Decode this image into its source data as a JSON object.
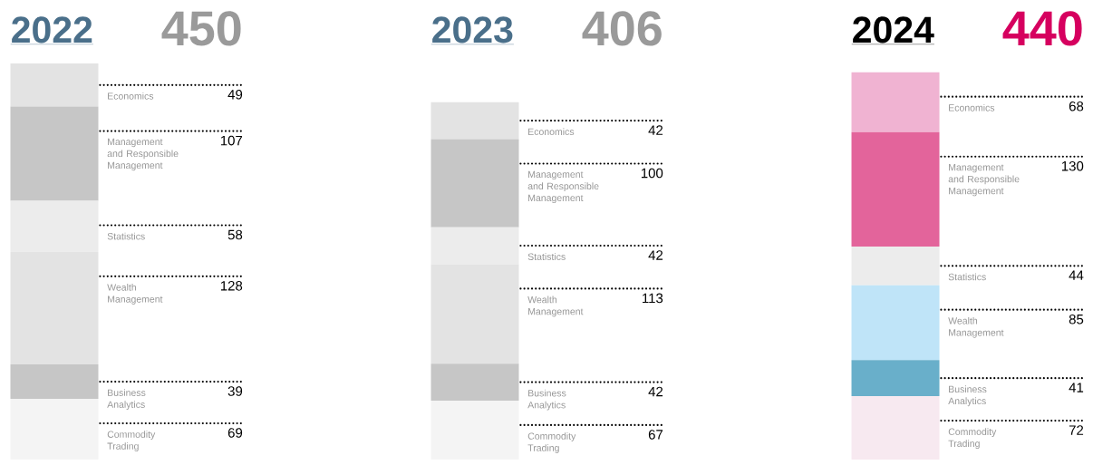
{
  "chart_data": {
    "type": "bar",
    "stacked": true,
    "categories": [
      "2022",
      "2023",
      "2024"
    ],
    "totals": [
      "450",
      "406",
      "440"
    ],
    "series": [
      {
        "name": "Commodity Trading",
        "colors": [
          "#f4f4f4",
          "#f4f4f4",
          "#f7e9f0"
        ],
        "values": [
          69,
          67,
          72
        ],
        "value_labels": [
          "69",
          "67",
          "72"
        ]
      },
      {
        "name": "Business Analytics",
        "colors": [
          "#c6c6c6",
          "#c6c6c6",
          "#69afca"
        ],
        "values": [
          39,
          42,
          41
        ],
        "value_labels": [
          "39",
          "42",
          "41"
        ]
      },
      {
        "name": "Wealth Management",
        "colors": [
          "#e3e3e3",
          "#e3e3e3",
          "#bfe4f8"
        ],
        "values": [
          128,
          113,
          85
        ],
        "value_labels": [
          "128",
          "113",
          "85"
        ]
      },
      {
        "name": "Statistics",
        "colors": [
          "#ececec",
          "#ececec",
          "#ececec"
        ],
        "values": [
          58,
          42,
          44
        ],
        "value_labels": [
          "58",
          "42",
          "44"
        ]
      },
      {
        "name": "Management and Responsible Management",
        "colors": [
          "#c6c6c6",
          "#c6c6c6",
          "#e3649b"
        ],
        "values": [
          107,
          100,
          130
        ],
        "value_labels": [
          "107",
          "100",
          "130"
        ]
      },
      {
        "name": "Economics",
        "colors": [
          "#e3e3e3",
          "#e3e3e3",
          "#f0b3d2"
        ],
        "values": [
          49,
          42,
          68
        ],
        "value_labels": [
          "49",
          "42",
          "68"
        ]
      }
    ]
  }
}
